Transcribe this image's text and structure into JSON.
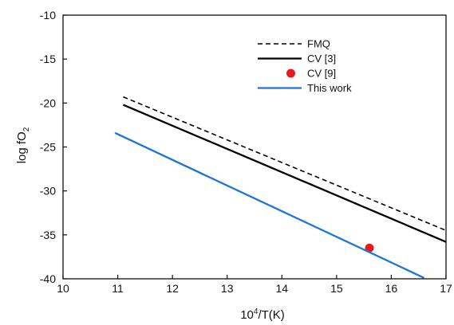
{
  "chart_data": {
    "type": "line",
    "xlabel": "10",
    "xlabel_sup": "4",
    "xlabel_rest": "/T(K)",
    "ylabel": "log fO",
    "ylabel_sub": "2",
    "xlim": [
      10,
      17
    ],
    "ylim": [
      -40,
      -10
    ],
    "x_ticks": [
      10,
      11,
      12,
      13,
      14,
      15,
      16,
      17
    ],
    "y_ticks": [
      -10,
      -15,
      -20,
      -25,
      -30,
      -35,
      -40
    ],
    "grid": false,
    "legend_position": "top-right",
    "series": [
      {
        "name": "FMQ",
        "style": "dashed",
        "color": "#000000",
        "x": [
          11.1,
          17.0
        ],
        "y": [
          -19.3,
          -34.5
        ]
      },
      {
        "name": "CV [3]",
        "style": "solid",
        "color": "#000000",
        "x": [
          11.1,
          17.0
        ],
        "y": [
          -20.2,
          -35.8
        ]
      },
      {
        "name": "CV [9]",
        "style": "marker",
        "color": "#e8191c",
        "x": [
          15.6
        ],
        "y": [
          -36.5
        ]
      },
      {
        "name": "This work",
        "style": "solid",
        "color": "#1e74d8",
        "x": [
          10.95,
          16.6
        ],
        "y": [
          -23.4,
          -39.9
        ]
      }
    ]
  }
}
